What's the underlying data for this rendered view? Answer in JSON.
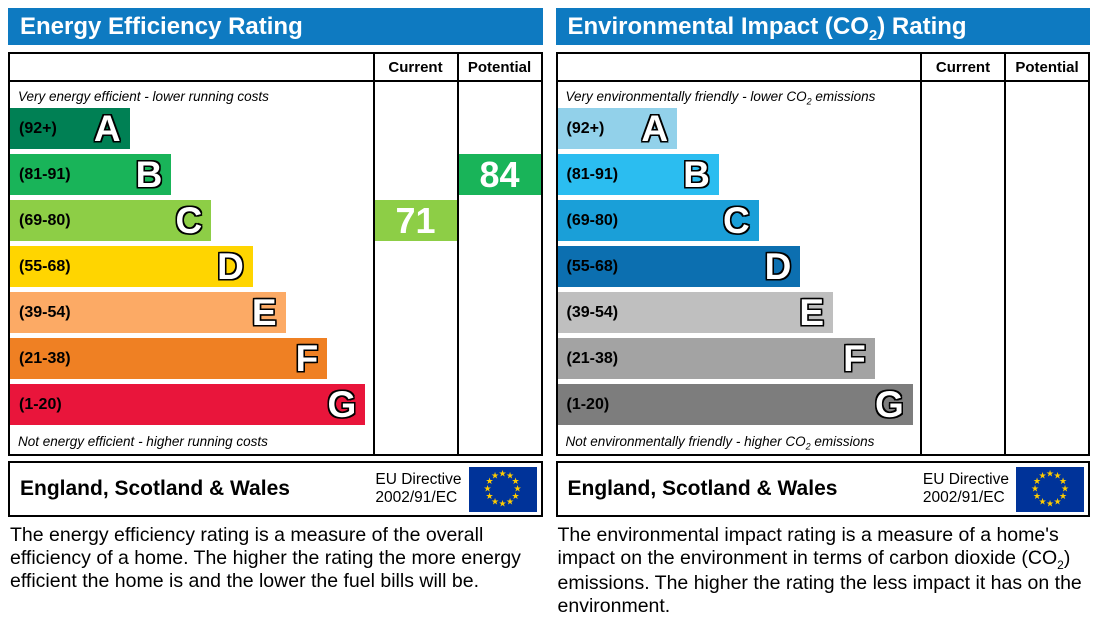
{
  "colors": {
    "header_bg": "#0e7ac1",
    "header_text": "#ffffff",
    "border": "#000000",
    "eu_flag_bg": "#003399",
    "eu_star": "#ffcc00"
  },
  "panels": [
    {
      "title": [
        "Energy Efficiency Rating",
        "",
        ""
      ],
      "current_label": "Current",
      "potential_label": "Potential",
      "top_caption": [
        "Very energy efficient - lower running costs",
        "",
        ""
      ],
      "bottom_caption": [
        "Not energy efficient - higher running costs",
        "",
        ""
      ],
      "bands": [
        {
          "range": "(92+)",
          "letter": "A",
          "color": "#008054",
          "width": "33%"
        },
        {
          "range": "(81-91)",
          "letter": "B",
          "color": "#19b459",
          "width": "44.5%"
        },
        {
          "range": "(69-80)",
          "letter": "C",
          "color": "#8dce46",
          "width": "55.5%"
        },
        {
          "range": "(55-68)",
          "letter": "D",
          "color": "#ffd500",
          "width": "67%"
        },
        {
          "range": "(39-54)",
          "letter": "E",
          "color": "#fcaa65",
          "width": "76%"
        },
        {
          "range": "(21-38)",
          "letter": "F",
          "color": "#ef8023",
          "width": "87.5%"
        },
        {
          "range": "(1-20)",
          "letter": "G",
          "color": "#e9153b",
          "width": "98%"
        }
      ],
      "current": {
        "value": "71",
        "band": "C",
        "row": 2,
        "color": "#8dce46"
      },
      "potential": {
        "value": "84",
        "band": "B",
        "row": 1,
        "color": "#19b459"
      },
      "footer": {
        "region": "England, Scotland & Wales",
        "directive_line1": "EU Directive",
        "directive_line2": "2002/91/EC"
      },
      "description": [
        "The energy efficiency rating is a measure of the overall efficiency of a home. The higher the rating the more energy efficient the home is and the lower the fuel bills will be.",
        "",
        ""
      ]
    },
    {
      "title": [
        "Environmental Impact (CO",
        "2",
        ") Rating"
      ],
      "current_label": "Current",
      "potential_label": "Potential",
      "top_caption": [
        "Very environmentally friendly - lower CO",
        "2",
        " emissions"
      ],
      "bottom_caption": [
        "Not environmentally friendly - higher CO",
        "2",
        " emissions"
      ],
      "bands": [
        {
          "range": "(92+)",
          "letter": "A",
          "color": "#92d1ea",
          "width": "33%"
        },
        {
          "range": "(81-91)",
          "letter": "B",
          "color": "#2bbdf0",
          "width": "44.5%"
        },
        {
          "range": "(69-80)",
          "letter": "C",
          "color": "#1a9fd8",
          "width": "55.5%"
        },
        {
          "range": "(55-68)",
          "letter": "D",
          "color": "#0c6fb0",
          "width": "67%"
        },
        {
          "range": "(39-54)",
          "letter": "E",
          "color": "#bfbfbf",
          "width": "76%"
        },
        {
          "range": "(21-38)",
          "letter": "F",
          "color": "#a3a3a3",
          "width": "87.5%"
        },
        {
          "range": "(1-20)",
          "letter": "G",
          "color": "#7d7d7d",
          "width": "98%"
        }
      ],
      "current": null,
      "potential": null,
      "footer": {
        "region": "England, Scotland & Wales",
        "directive_line1": "EU Directive",
        "directive_line2": "2002/91/EC"
      },
      "description": [
        "The environmental impact rating is a measure of a home's impact on the environment in terms of carbon dioxide (CO",
        "2",
        ") emissions. The higher the rating the less impact it has on the environment."
      ]
    }
  ],
  "chart_data": [
    {
      "type": "bar",
      "title": "Energy Efficiency Rating",
      "categories": [
        "A (92+)",
        "B (81-91)",
        "C (69-80)",
        "D (55-68)",
        "E (39-54)",
        "F (21-38)",
        "G (1-20)"
      ],
      "band_colors": [
        "#008054",
        "#19b459",
        "#8dce46",
        "#ffd500",
        "#fcaa65",
        "#ef8023",
        "#e9153b"
      ],
      "columns": [
        "Current",
        "Potential"
      ],
      "current_value": 71,
      "current_band": "C",
      "potential_value": 84,
      "potential_band": "B",
      "top_annotation": "Very energy efficient - lower running costs",
      "bottom_annotation": "Not energy efficient - higher running costs",
      "footer": "England, Scotland & Wales — EU Directive 2002/91/EC"
    },
    {
      "type": "bar",
      "title": "Environmental Impact (CO2) Rating",
      "categories": [
        "A (92+)",
        "B (81-91)",
        "C (69-80)",
        "D (55-68)",
        "E (39-54)",
        "F (21-38)",
        "G (1-20)"
      ],
      "band_colors": [
        "#92d1ea",
        "#2bbdf0",
        "#1a9fd8",
        "#0c6fb0",
        "#bfbfbf",
        "#a3a3a3",
        "#7d7d7d"
      ],
      "columns": [
        "Current",
        "Potential"
      ],
      "current_value": null,
      "current_band": null,
      "potential_value": null,
      "potential_band": null,
      "top_annotation": "Very environmentally friendly - lower CO2 emissions",
      "bottom_annotation": "Not environmentally friendly - higher CO2 emissions",
      "footer": "England, Scotland & Wales — EU Directive 2002/91/EC"
    }
  ]
}
